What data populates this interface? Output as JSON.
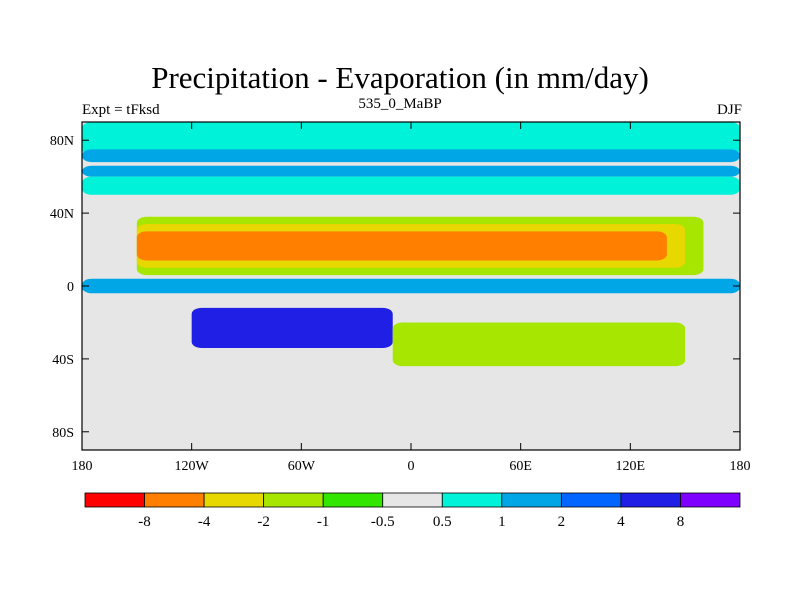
{
  "chart_data": {
    "type": "heatmap",
    "title": "Precipitation - Evaporation (in mm/day)",
    "left_string": "Expt = tFksd",
    "center_string": "535_0_MaBP",
    "right_string": "DJF",
    "x_ticks": [
      "180",
      "120W",
      "60W",
      "0",
      "60E",
      "120E",
      "180"
    ],
    "x_tick_values": [
      -180,
      -120,
      -60,
      0,
      60,
      120,
      180
    ],
    "y_ticks": [
      "80N",
      "40N",
      "0",
      "40S",
      "80S"
    ],
    "y_tick_values": [
      80,
      40,
      0,
      -40,
      -80
    ],
    "xlim": [
      -180,
      180
    ],
    "ylim": [
      -90,
      90
    ],
    "colorbar": {
      "levels": [
        "-8",
        "-4",
        "-2",
        "-1",
        "-0.5",
        "0.5",
        "1",
        "2",
        "4",
        "8"
      ],
      "colors": [
        "#ff0000",
        "#ff7f00",
        "#e6d800",
        "#a6e600",
        "#33e600",
        "#e6e6e6",
        "#00f2d9",
        "#00a6e6",
        "#0066ff",
        "#1f1fe6",
        "#8000ff"
      ]
    },
    "field_bands": [
      {
        "lat_range": [
          72,
          90
        ],
        "lon_range": [
          -180,
          180
        ],
        "color": "#00f2d9"
      },
      {
        "lat_range": [
          68,
          75
        ],
        "lon_range": [
          -180,
          180
        ],
        "color": "#00a6e6"
      },
      {
        "lat_range": [
          60,
          66
        ],
        "lon_range": [
          -180,
          180
        ],
        "color": "#00a6e6"
      },
      {
        "lat_range": [
          50,
          60
        ],
        "lon_range": [
          -180,
          180
        ],
        "color": "#00f2d9"
      },
      {
        "lat_range": [
          40,
          50
        ],
        "lon_range": [
          -180,
          180
        ],
        "color": "#e6e6e6"
      },
      {
        "lat_range": [
          6,
          38
        ],
        "lon_range": [
          -150,
          160
        ],
        "color": "#a6e600"
      },
      {
        "lat_range": [
          10,
          34
        ],
        "lon_range": [
          -150,
          150
        ],
        "color": "#e6d800"
      },
      {
        "lat_range": [
          14,
          30
        ],
        "lon_range": [
          -150,
          140
        ],
        "color": "#ff7f00"
      },
      {
        "lat_range": [
          -4,
          4
        ],
        "lon_range": [
          -180,
          180
        ],
        "color": "#00a6e6"
      },
      {
        "lat_range": [
          -34,
          -12
        ],
        "lon_range": [
          -120,
          -10
        ],
        "color": "#1f1fe6"
      },
      {
        "lat_range": [
          -44,
          -20
        ],
        "lon_range": [
          -10,
          150
        ],
        "color": "#a6e600"
      },
      {
        "lat_range": [
          -90,
          -60
        ],
        "lon_range": [
          -180,
          180
        ],
        "color": "#e6e6e6"
      }
    ]
  }
}
